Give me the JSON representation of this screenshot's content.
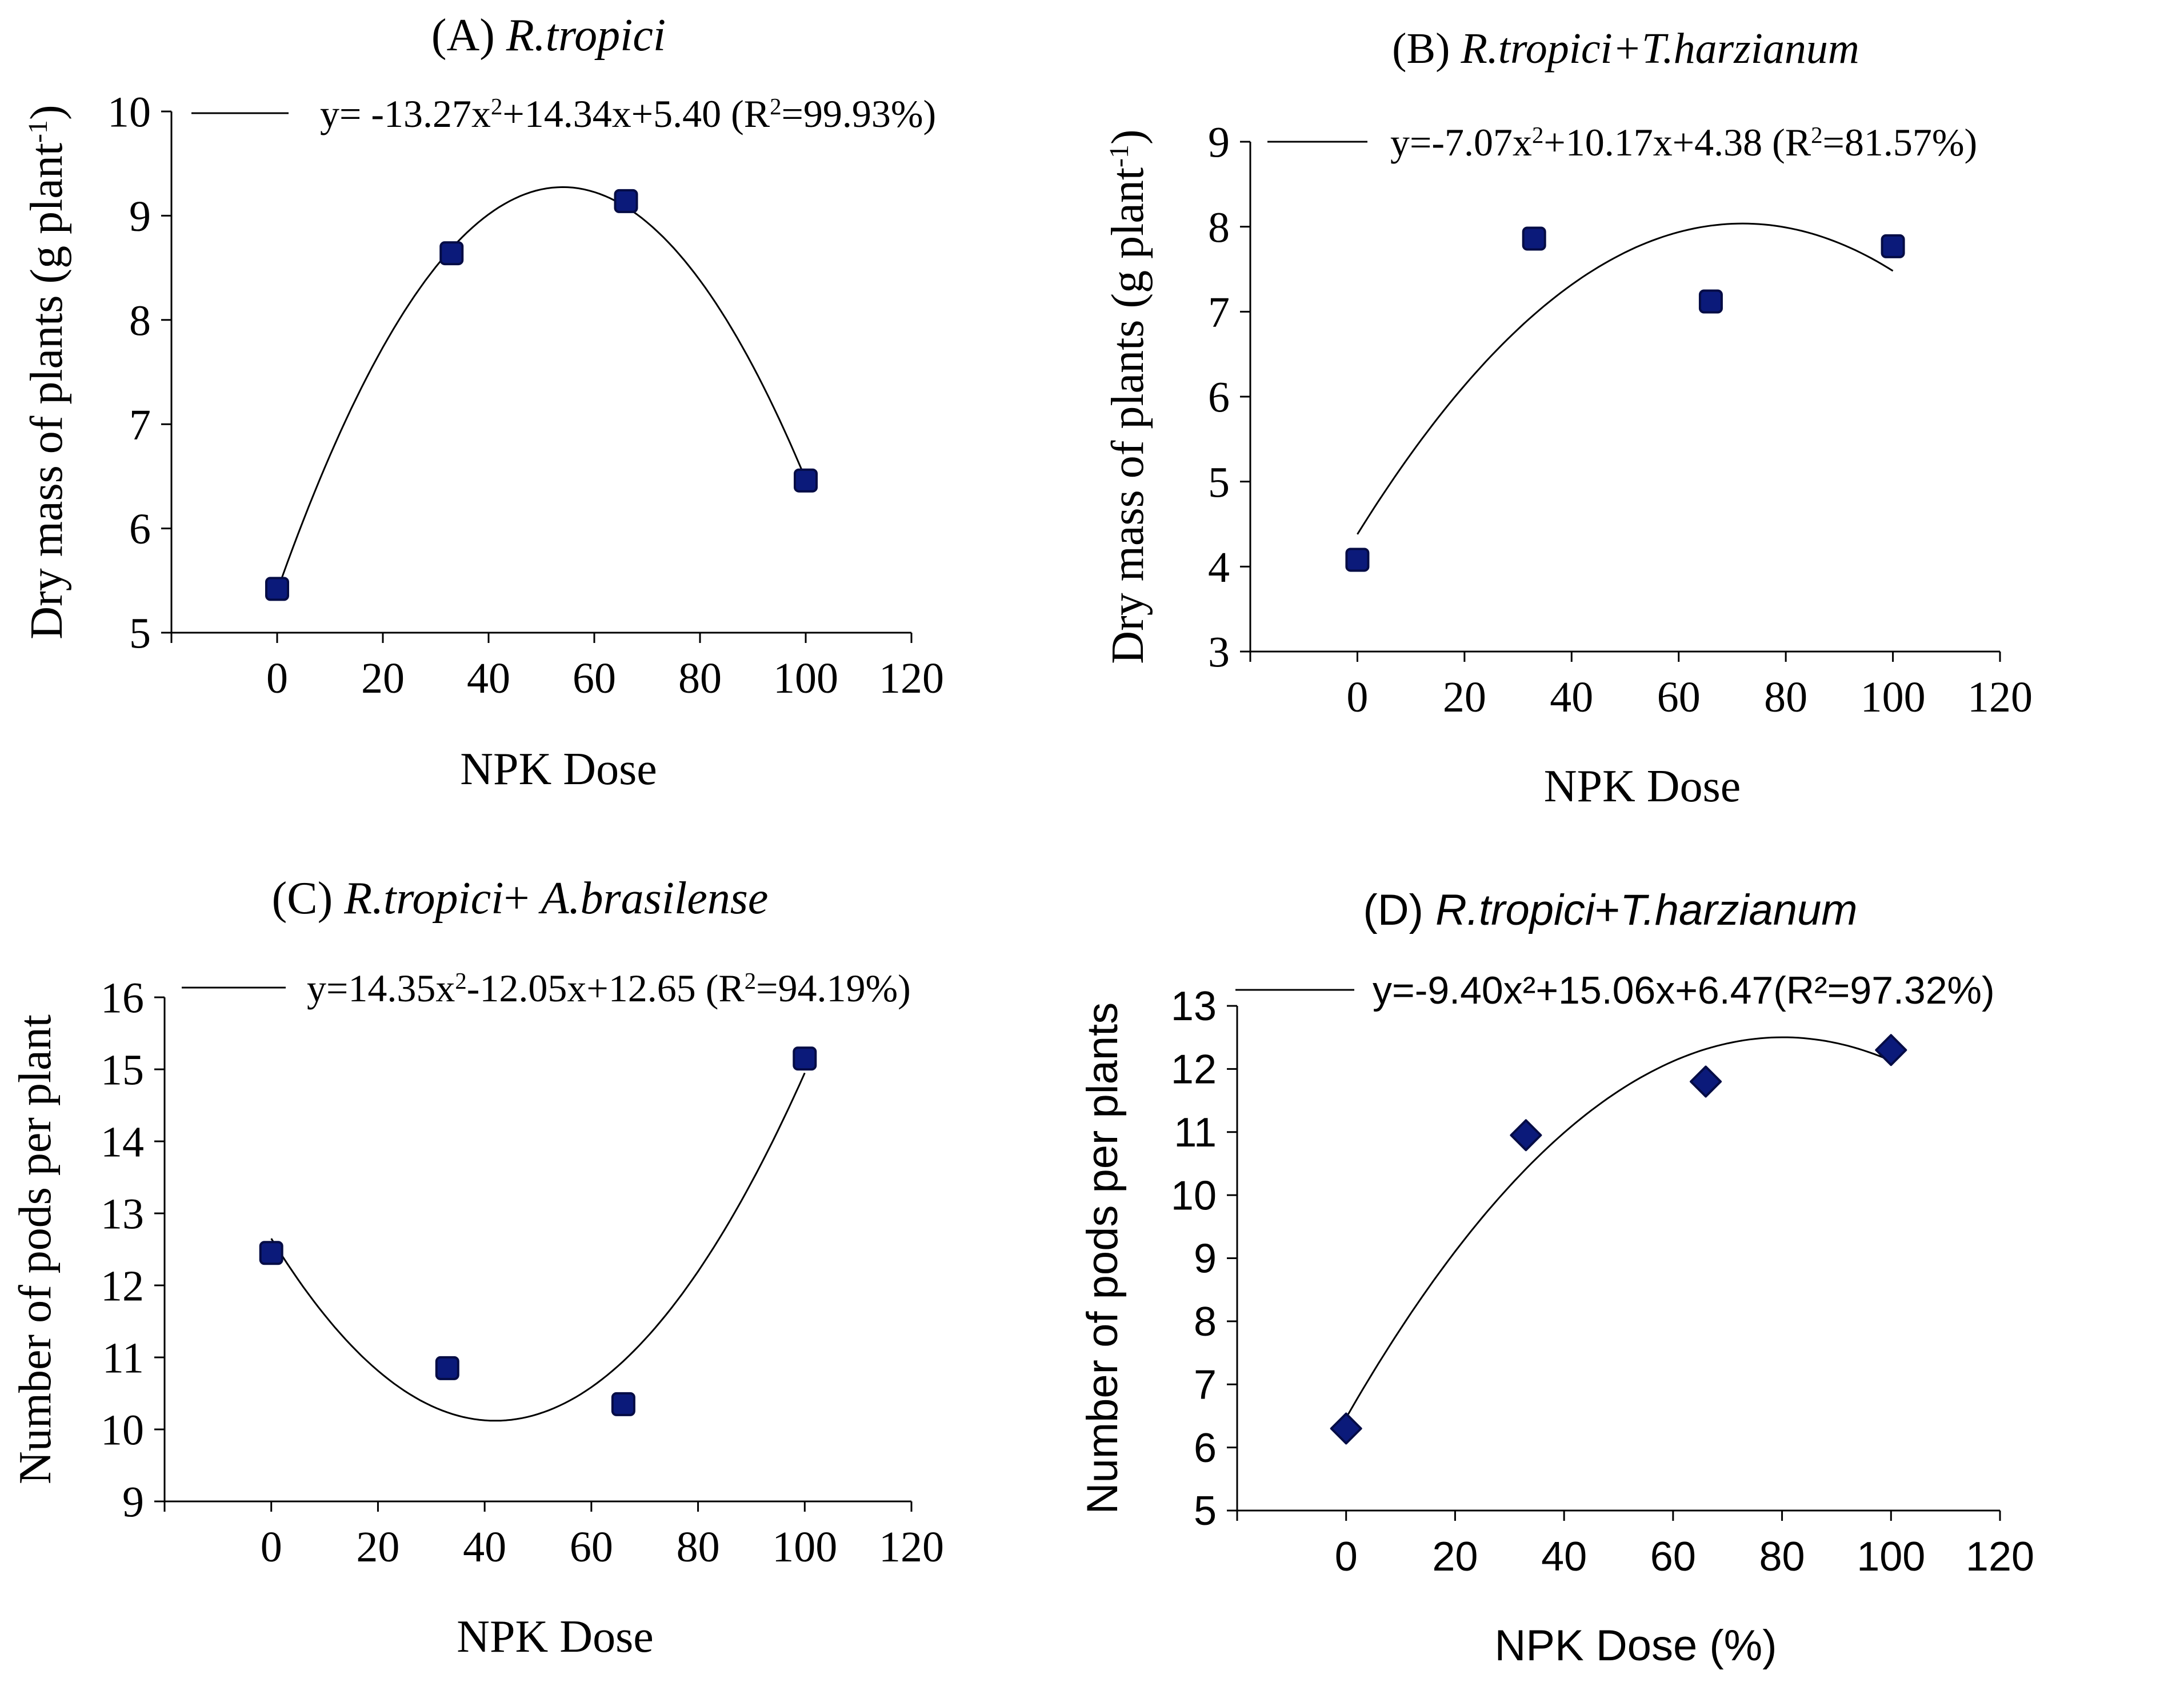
{
  "chart_data": [
    {
      "id": "A",
      "type": "scatter",
      "panel_label": "(A) ",
      "title_italic": "R.tropici",
      "title_suffix": "",
      "xlabel": "NPK Dose",
      "ylabel": "Dry mass of plants (g plant",
      "ylabel_sup": "-1",
      "ylabel_end": ")",
      "xlim": [
        -20,
        120
      ],
      "ylim": [
        5,
        10
      ],
      "xticks": [
        0,
        20,
        40,
        60,
        80,
        100,
        120
      ],
      "yticks": [
        5,
        6,
        7,
        8,
        9,
        10
      ],
      "marker": "square",
      "points": [
        {
          "x": 0,
          "y": 5.42
        },
        {
          "x": 33,
          "y": 8.64
        },
        {
          "x": 66,
          "y": 9.14
        },
        {
          "x": 100,
          "y": 6.46
        }
      ],
      "fit": {
        "a": -13.27,
        "b": 14.34,
        "c": 5.4
      },
      "equation": {
        "pre": "y= -13.27x",
        "sup": "2",
        "post": "+14.34x+5.40 (R",
        "sup2": "2",
        "end": "=99.93%)"
      }
    },
    {
      "id": "B",
      "type": "scatter",
      "panel_label": "(B) ",
      "title_italic": "R.tropici+T.harzianum",
      "title_suffix": "",
      "xlabel": "NPK Dose",
      "ylabel": "Dry mass of plants (g plant",
      "ylabel_sup": "-1",
      "ylabel_end": ")",
      "xlim": [
        -20,
        120
      ],
      "ylim": [
        3,
        9
      ],
      "xticks": [
        0,
        20,
        40,
        60,
        80,
        100,
        120
      ],
      "yticks": [
        3,
        4,
        5,
        6,
        7,
        8,
        9
      ],
      "marker": "square",
      "points": [
        {
          "x": 0,
          "y": 4.08
        },
        {
          "x": 33,
          "y": 7.86
        },
        {
          "x": 66,
          "y": 7.12
        },
        {
          "x": 100,
          "y": 7.77
        }
      ],
      "fit": {
        "a": -7.07,
        "b": 10.17,
        "c": 4.38
      },
      "equation": {
        "pre": "y=-7.07x",
        "sup": "2",
        "post": "+10.17x+4.38 (R",
        "sup2": "2",
        "end": "=81.57%)"
      }
    },
    {
      "id": "C",
      "type": "scatter",
      "panel_label": "(C) ",
      "title_italic": "R.tropici",
      "title_suffix": "+ A.brasilense",
      "xlabel": "NPK Dose",
      "ylabel": "Number of pods per plant",
      "ylabel_sup": "",
      "ylabel_end": "",
      "xlim": [
        -20,
        120
      ],
      "ylim": [
        9,
        16
      ],
      "xticks": [
        0,
        20,
        40,
        60,
        80,
        100,
        120
      ],
      "yticks": [
        9,
        10,
        11,
        12,
        13,
        14,
        15,
        16
      ],
      "marker": "square",
      "points": [
        {
          "x": 0,
          "y": 12.45
        },
        {
          "x": 33,
          "y": 10.85
        },
        {
          "x": 66,
          "y": 10.35
        },
        {
          "x": 100,
          "y": 15.15
        }
      ],
      "fit": {
        "a": 14.35,
        "b": -12.05,
        "c": 12.65
      },
      "equation": {
        "pre": "y=14.35x",
        "sup": "2",
        "post": "-12.05x+12.65 (R",
        "sup2": "2",
        "end": "=94.19%)"
      }
    },
    {
      "id": "D",
      "type": "scatter",
      "panel_label": "(D) ",
      "title_italic": "R.tropici",
      "title_suffix": "+T.harzianum",
      "xlabel": "NPK Dose (%)",
      "ylabel": "Number of pods per plants",
      "ylabel_sup": "",
      "ylabel_end": "",
      "xlim": [
        -20,
        120
      ],
      "ylim": [
        5,
        13
      ],
      "xticks": [
        0,
        20,
        40,
        60,
        80,
        100,
        120
      ],
      "yticks": [
        5,
        6,
        7,
        8,
        9,
        10,
        11,
        12,
        13
      ],
      "marker": "diamond",
      "points": [
        {
          "x": 0,
          "y": 6.3
        },
        {
          "x": 33,
          "y": 10.95
        },
        {
          "x": 66,
          "y": 11.8
        },
        {
          "x": 100,
          "y": 12.3
        }
      ],
      "fit": {
        "a": -9.4,
        "b": 15.06,
        "c": 6.47
      },
      "equation": {
        "pre": "y=-9.40x²+15.06x+6.47(R²=97.32%)",
        "sup": "",
        "post": "",
        "sup2": "",
        "end": ""
      }
    }
  ]
}
